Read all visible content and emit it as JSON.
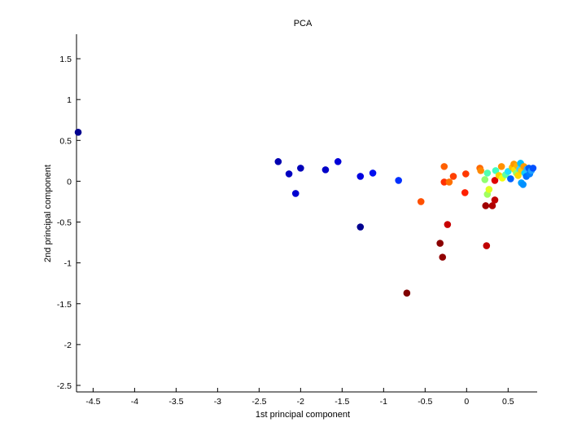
{
  "chart_data": {
    "type": "scatter",
    "title": "PCA",
    "xlabel": "1st principal component",
    "ylabel": "2nd principal component",
    "xlim": [
      -4.7,
      0.85
    ],
    "ylim": [
      -2.58,
      1.8
    ],
    "x_ticks": [
      -4.5,
      -4,
      -3.5,
      -3,
      -2.5,
      -2,
      -1.5,
      -1,
      -0.5,
      0,
      0.5
    ],
    "x_tick_labels": [
      "-4.5",
      "-4",
      "-3.5",
      "-3",
      "-2.5",
      "-2",
      "-1.5",
      "-1",
      "-0.5",
      "0",
      "0.5"
    ],
    "y_ticks": [
      1.5,
      1,
      0.5,
      0,
      -0.5,
      -1,
      -1.5,
      -2,
      -2.5
    ],
    "y_tick_labels": [
      "1.5",
      "1",
      "0.5",
      "0",
      "-0.5",
      "-1",
      "-1.5",
      "-2",
      "-2.5"
    ],
    "grid": false,
    "colormap": "jet",
    "axis_color": "#000000",
    "points": [
      {
        "x": -4.68,
        "y": 0.6,
        "color": "#00008f"
      },
      {
        "x": -2.27,
        "y": 0.24,
        "color": "#0000b0"
      },
      {
        "x": -2.14,
        "y": 0.09,
        "color": "#0000c0"
      },
      {
        "x": -2.06,
        "y": -0.15,
        "color": "#0000d0"
      },
      {
        "x": -2.0,
        "y": 0.16,
        "color": "#0000b8"
      },
      {
        "x": -1.7,
        "y": 0.14,
        "color": "#0000c8"
      },
      {
        "x": -1.55,
        "y": 0.24,
        "color": "#0000d8"
      },
      {
        "x": -1.28,
        "y": 0.06,
        "color": "#0000e0"
      },
      {
        "x": -1.28,
        "y": -0.56,
        "color": "#000090"
      },
      {
        "x": -1.13,
        "y": 0.1,
        "color": "#0010f0"
      },
      {
        "x": -0.82,
        "y": 0.01,
        "color": "#0030ff"
      },
      {
        "x": -0.72,
        "y": -1.37,
        "color": "#800000"
      },
      {
        "x": -0.55,
        "y": -0.25,
        "color": "#ff5000"
      },
      {
        "x": -0.32,
        "y": -0.76,
        "color": "#8a0000"
      },
      {
        "x": -0.29,
        "y": -0.93,
        "color": "#900000"
      },
      {
        "x": -0.27,
        "y": 0.18,
        "color": "#ff6000"
      },
      {
        "x": -0.27,
        "y": -0.01,
        "color": "#ff3000"
      },
      {
        "x": -0.23,
        "y": -0.53,
        "color": "#c80000"
      },
      {
        "x": -0.21,
        "y": -0.01,
        "color": "#ff7000"
      },
      {
        "x": -0.16,
        "y": 0.06,
        "color": "#ff4000"
      },
      {
        "x": -0.02,
        "y": -0.14,
        "color": "#ff2000"
      },
      {
        "x": -0.01,
        "y": 0.09,
        "color": "#ff3800"
      },
      {
        "x": 0.16,
        "y": 0.16,
        "color": "#ff6800"
      },
      {
        "x": 0.17,
        "y": 0.13,
        "color": "#ff8800"
      },
      {
        "x": 0.22,
        "y": 0.02,
        "color": "#90ff70"
      },
      {
        "x": 0.23,
        "y": -0.3,
        "color": "#a00000"
      },
      {
        "x": 0.24,
        "y": -0.79,
        "color": "#c00000"
      },
      {
        "x": 0.25,
        "y": 0.1,
        "color": "#50ffb0"
      },
      {
        "x": 0.25,
        "y": -0.16,
        "color": "#a0ff60"
      },
      {
        "x": 0.27,
        "y": -0.1,
        "color": "#e0ff20"
      },
      {
        "x": 0.31,
        "y": -0.3,
        "color": "#b00000"
      },
      {
        "x": 0.34,
        "y": -0.23,
        "color": "#c00000"
      },
      {
        "x": 0.34,
        "y": 0.01,
        "color": "#e00000"
      },
      {
        "x": 0.35,
        "y": 0.13,
        "color": "#40ffc0"
      },
      {
        "x": 0.39,
        "y": 0.07,
        "color": "#ffd000"
      },
      {
        "x": 0.42,
        "y": 0.18,
        "color": "#ff9000"
      },
      {
        "x": 0.43,
        "y": 0.04,
        "color": "#f0ff10"
      },
      {
        "x": 0.47,
        "y": 0.08,
        "color": "#60ffa0"
      },
      {
        "x": 0.5,
        "y": 0.12,
        "color": "#20e0ff"
      },
      {
        "x": 0.53,
        "y": 0.03,
        "color": "#0060ff"
      },
      {
        "x": 0.55,
        "y": 0.17,
        "color": "#ffc000"
      },
      {
        "x": 0.57,
        "y": 0.21,
        "color": "#ff9800"
      },
      {
        "x": 0.58,
        "y": 0.14,
        "color": "#ffe000"
      },
      {
        "x": 0.6,
        "y": 0.1,
        "color": "#90ff70"
      },
      {
        "x": 0.61,
        "y": 0.19,
        "color": "#ffb000"
      },
      {
        "x": 0.62,
        "y": 0.07,
        "color": "#ffd800"
      },
      {
        "x": 0.64,
        "y": 0.15,
        "color": "#40d0ff"
      },
      {
        "x": 0.65,
        "y": 0.22,
        "color": "#00c0ff"
      },
      {
        "x": 0.66,
        "y": 0.13,
        "color": "#ffc800"
      },
      {
        "x": 0.66,
        "y": -0.02,
        "color": "#00a0ff"
      },
      {
        "x": 0.68,
        "y": -0.04,
        "color": "#0090ff"
      },
      {
        "x": 0.69,
        "y": 0.18,
        "color": "#ff9c00"
      },
      {
        "x": 0.7,
        "y": 0.1,
        "color": "#10d0ff"
      },
      {
        "x": 0.72,
        "y": 0.06,
        "color": "#0070ff"
      },
      {
        "x": 0.73,
        "y": 0.15,
        "color": "#30b0ff"
      },
      {
        "x": 0.75,
        "y": 0.16,
        "color": "#0060ff"
      },
      {
        "x": 0.76,
        "y": 0.09,
        "color": "#0080ff"
      },
      {
        "x": 0.78,
        "y": 0.13,
        "color": "#20a0ff"
      },
      {
        "x": 0.8,
        "y": 0.16,
        "color": "#0050ff"
      }
    ]
  }
}
